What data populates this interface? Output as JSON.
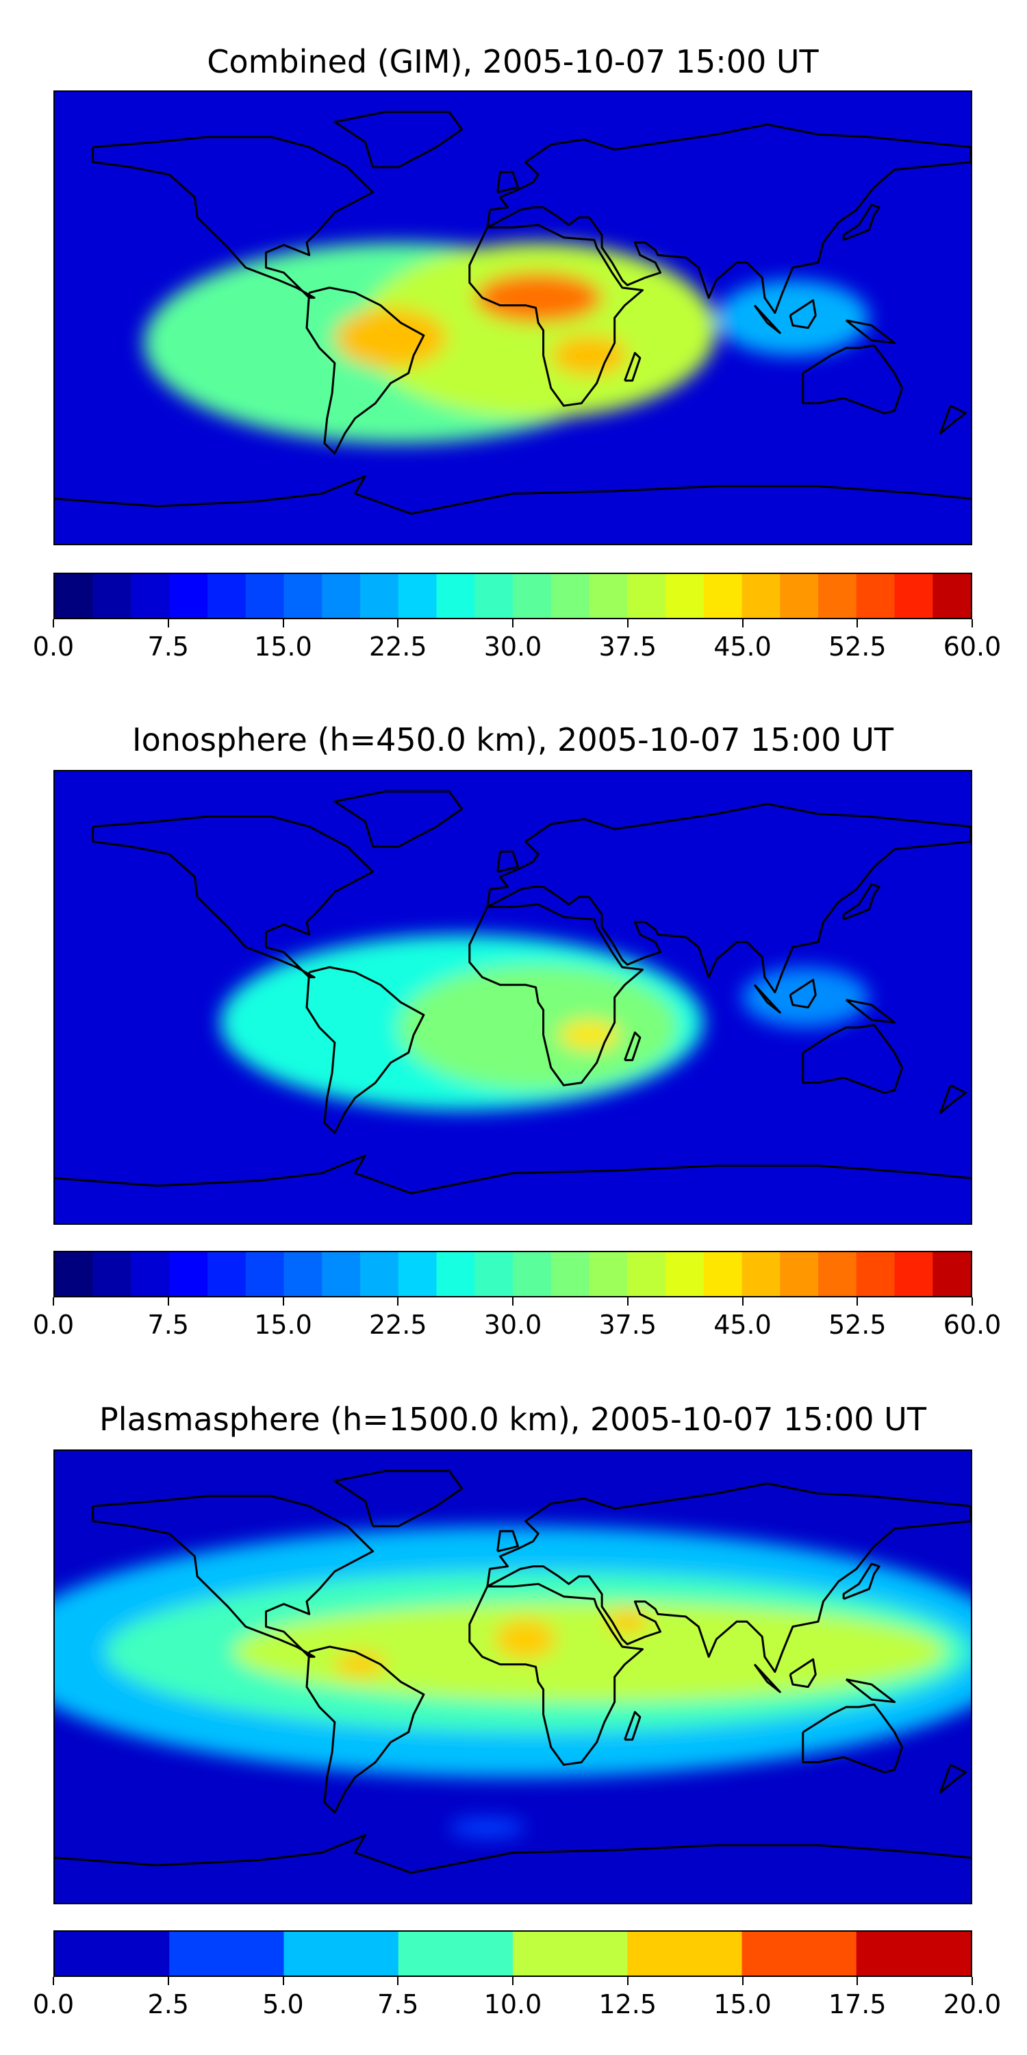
{
  "chart_data": [
    {
      "type": "heatmap",
      "title": "Combined (GIM), 2005-10-07 15:00 UT",
      "xlabel": "",
      "ylabel": "",
      "colorbar": {
        "ticks": [
          0,
          7.5,
          15,
          22.5,
          30,
          37.5,
          45,
          52.5,
          60
        ],
        "tick_labels": [
          "0.0",
          "7.5",
          "15.0",
          "22.5",
          "30.0",
          "37.5",
          "45.0",
          "52.5",
          "60.0"
        ],
        "vmin": 0,
        "vmax": 60,
        "levels": 24,
        "colors": [
          "#00007f",
          "#0000a8",
          "#0000d4",
          "#0000ff",
          "#0020ff",
          "#0044ff",
          "#0068ff",
          "#008cff",
          "#00b0ff",
          "#00d4ff",
          "#16ffe1",
          "#38ffbf",
          "#5aff9c",
          "#7cff7a",
          "#9cff5a",
          "#bfff38",
          "#e1ff16",
          "#ffe600",
          "#ffbf00",
          "#ff9800",
          "#ff7100",
          "#ff4a00",
          "#ff2300",
          "#c30000",
          "#8a0000"
        ]
      },
      "blobs": [
        {
          "lon": -45,
          "lat": -10,
          "rx": 100,
          "ry": 40,
          "value": 30
        },
        {
          "lon": 10,
          "lat": -5,
          "rx": 70,
          "ry": 35,
          "value": 38
        },
        {
          "lon": -48,
          "lat": -8,
          "rx": 22,
          "ry": 12,
          "value": 45
        },
        {
          "lon": 10,
          "lat": 8,
          "rx": 25,
          "ry": 10,
          "value": 50
        },
        {
          "lon": 30,
          "lat": -15,
          "rx": 15,
          "ry": 8,
          "value": 46
        },
        {
          "lon": 110,
          "lat": 0,
          "rx": 30,
          "ry": 15,
          "value": 22
        }
      ]
    },
    {
      "type": "heatmap",
      "title": "Ionosphere  (h=450.0 km), 2005-10-07 15:00 UT",
      "xlabel": "",
      "ylabel": "",
      "colorbar": {
        "ticks": [
          0,
          7.5,
          15,
          22.5,
          30,
          37.5,
          45,
          52.5,
          60
        ],
        "tick_labels": [
          "0.0",
          "7.5",
          "15.0",
          "22.5",
          "30.0",
          "37.5",
          "45.0",
          "52.5",
          "60.0"
        ],
        "vmin": 0,
        "vmax": 60,
        "levels": 24,
        "colors": [
          "#00007f",
          "#0000a8",
          "#0000d4",
          "#0000ff",
          "#0020ff",
          "#0044ff",
          "#0068ff",
          "#008cff",
          "#00b0ff",
          "#00d4ff",
          "#16ffe1",
          "#38ffbf",
          "#5aff9c",
          "#7cff7a",
          "#9cff5a",
          "#bfff38",
          "#e1ff16",
          "#ffe600",
          "#ffbf00",
          "#ff9800",
          "#ff7100",
          "#ff4a00",
          "#ff2300",
          "#c30000",
          "#8a0000"
        ]
      },
      "blobs": [
        {
          "lon": -20,
          "lat": -10,
          "rx": 95,
          "ry": 35,
          "value": 26
        },
        {
          "lon": 10,
          "lat": -12,
          "rx": 55,
          "ry": 25,
          "value": 34
        },
        {
          "lon": 30,
          "lat": -15,
          "rx": 12,
          "ry": 6,
          "value": 43
        },
        {
          "lon": 115,
          "lat": 0,
          "rx": 25,
          "ry": 12,
          "value": 18
        }
      ]
    },
    {
      "type": "heatmap",
      "title": "Plasmasphere (h=1500.0 km), 2005-10-07 15:00 UT",
      "xlabel": "",
      "ylabel": "",
      "colorbar": {
        "ticks": [
          0,
          2.5,
          5,
          7.5,
          10,
          12.5,
          15,
          17.5,
          20
        ],
        "tick_labels": [
          "0.0",
          "2.5",
          "5.0",
          "7.5",
          "10.0",
          "12.5",
          "15.0",
          "17.5",
          "20.0"
        ],
        "vmin": 0,
        "vmax": 20,
        "levels": 8,
        "colors": [
          "#0000c8",
          "#0040ff",
          "#00bfff",
          "#40ffbf",
          "#bfff40",
          "#ffcc00",
          "#ff5000",
          "#c80000"
        ]
      },
      "blobs": [
        {
          "lon": 0,
          "lat": 10,
          "rx": 200,
          "ry": 50,
          "value": 6
        },
        {
          "lon": 10,
          "lat": 10,
          "rx": 170,
          "ry": 32,
          "value": 9
        },
        {
          "lon": 30,
          "lat": 10,
          "rx": 140,
          "ry": 20,
          "value": 11
        },
        {
          "lon": 5,
          "lat": 15,
          "rx": 12,
          "ry": 8,
          "value": 14
        },
        {
          "lon": 45,
          "lat": 22,
          "rx": 8,
          "ry": 5,
          "value": 14
        },
        {
          "lon": -60,
          "lat": 5,
          "rx": 10,
          "ry": 5,
          "value": 14
        },
        {
          "lon": -10,
          "lat": -60,
          "rx": 15,
          "ry": 4,
          "value": 3
        }
      ]
    }
  ]
}
